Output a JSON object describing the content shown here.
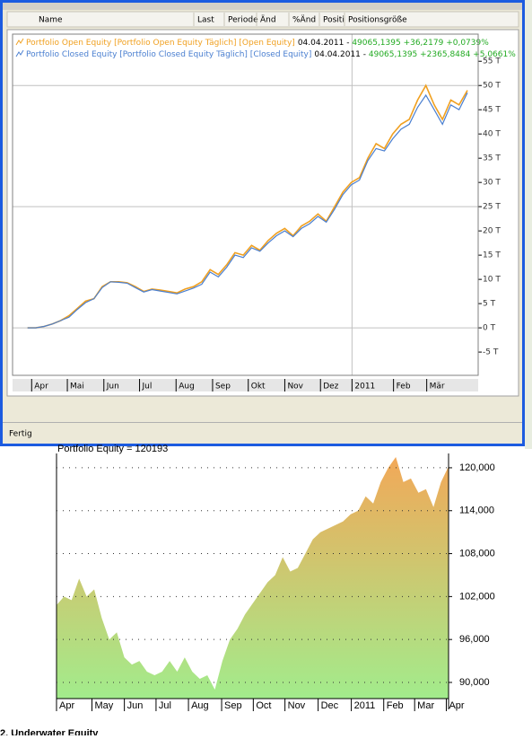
{
  "window": {
    "columns": [
      "Name",
      "Last",
      "Periode",
      "Änd",
      "%Änd",
      "Positi",
      "Positionsgröße"
    ],
    "status": "Fertig"
  },
  "chart_data": [
    {
      "type": "line",
      "series": [
        {
          "name": "Portfolio Open Equity [Portfolio Open Equity  Täglich] [Open Equity]",
          "date_label": "04.04.2011 - ",
          "stats": "49065,1395 +36,2179 +0,0739%",
          "color": "#f0a020",
          "values": [
            0,
            0,
            0.3,
            0.8,
            1.5,
            2.5,
            4,
            5.5,
            6,
            8.5,
            9.5,
            9.5,
            9.3,
            8.5,
            7.5,
            8,
            7.8,
            7.5,
            7.2,
            8,
            8.5,
            9.5,
            12,
            11,
            13,
            15.5,
            15,
            17,
            16,
            18,
            19.5,
            20.5,
            19,
            21,
            22,
            23.5,
            22,
            25,
            28,
            30,
            31,
            35,
            38,
            37,
            40,
            42,
            43,
            47,
            50,
            46,
            43,
            47,
            46,
            49
          ]
        },
        {
          "name": "Portfolio Closed Equity [Portfolio Closed Equity  Täglich] [Closed Equity]",
          "date_label": "04.04.2011 - ",
          "stats": "49065,1395 +2365,8484 +5,0661%",
          "color": "#4a7fd0",
          "values": [
            0,
            0,
            0.3,
            0.8,
            1.5,
            2.2,
            3.8,
            5.2,
            6,
            8.3,
            9.5,
            9.4,
            9.2,
            8.3,
            7.4,
            7.9,
            7.6,
            7.3,
            7,
            7.6,
            8.2,
            9,
            11.5,
            10.5,
            12.5,
            15,
            14.5,
            16.5,
            15.8,
            17.5,
            19,
            20,
            18.8,
            20.5,
            21.5,
            23,
            21.8,
            24.5,
            27.5,
            29.5,
            30.5,
            34.5,
            37,
            36.5,
            39,
            41,
            42,
            45.5,
            48,
            45,
            42,
            46,
            45,
            48.5
          ]
        }
      ],
      "xlim": [
        -1.8,
        54.3
      ],
      "xticks": [
        {
          "value": 0.5,
          "label": "Apr"
        },
        {
          "value": 4.8,
          "label": "Mai"
        },
        {
          "value": 9.2,
          "label": "Jun"
        },
        {
          "value": 13.5,
          "label": "Jul"
        },
        {
          "value": 17.9,
          "label": "Aug"
        },
        {
          "value": 22.3,
          "label": "Sep"
        },
        {
          "value": 26.6,
          "label": "Okt"
        },
        {
          "value": 31,
          "label": "Nov"
        },
        {
          "value": 35.3,
          "label": "Dez"
        },
        {
          "value": 39.1,
          "label": "2011"
        },
        {
          "value": 44.1,
          "label": "Feb"
        },
        {
          "value": 48.1,
          "label": "Mär"
        }
      ],
      "ylim": [
        -9.8,
        60.6
      ],
      "yticks": [
        {
          "value": -5,
          "label": "-5 T"
        },
        {
          "value": 0,
          "label": "0 T"
        },
        {
          "value": 5,
          "label": "5 T"
        },
        {
          "value": 10,
          "label": "10 T"
        },
        {
          "value": 15,
          "label": "15 T"
        },
        {
          "value": 20,
          "label": "20 T"
        },
        {
          "value": 25,
          "label": "25 T"
        },
        {
          "value": 30,
          "label": "30 T"
        },
        {
          "value": 35,
          "label": "35 T"
        },
        {
          "value": 40,
          "label": "40 T"
        },
        {
          "value": 45,
          "label": "45 T"
        },
        {
          "value": 50,
          "label": "50 T"
        },
        {
          "value": 55,
          "label": "55 T"
        }
      ],
      "grid": true
    },
    {
      "type": "area",
      "title": "Portfolio Equity = 120193",
      "colors": [
        "#f2a858",
        "#a2ec8c"
      ],
      "values": [
        100800,
        102000,
        101500,
        104500,
        102000,
        103000,
        99000,
        96000,
        97000,
        93500,
        92500,
        93000,
        91500,
        91000,
        91500,
        93000,
        91500,
        93500,
        91500,
        90500,
        91000,
        89000,
        93000,
        96000,
        97500,
        99500,
        101000,
        102500,
        104000,
        105000,
        107500,
        105500,
        106000,
        108000,
        110000,
        111000,
        111500,
        112000,
        112500,
        113500,
        114000,
        116000,
        115000,
        118000,
        120000,
        121500,
        118000,
        118500,
        116500,
        117000,
        114500,
        118000,
        120193
      ],
      "xlim": [
        0,
        52
      ],
      "xticks": [
        {
          "value": 0,
          "label": "Apr"
        },
        {
          "value": 4.7,
          "label": "May"
        },
        {
          "value": 9,
          "label": "Jun"
        },
        {
          "value": 13.2,
          "label": "Jul"
        },
        {
          "value": 17.5,
          "label": "Aug"
        },
        {
          "value": 21.9,
          "label": "Sep"
        },
        {
          "value": 26.1,
          "label": "Oct"
        },
        {
          "value": 30.3,
          "label": "Nov"
        },
        {
          "value": 34.7,
          "label": "Dec"
        },
        {
          "value": 39.1,
          "label": "2011"
        },
        {
          "value": 43.4,
          "label": "Feb"
        },
        {
          "value": 47.5,
          "label": "Mar"
        },
        {
          "value": 51.7,
          "label": "Apr"
        }
      ],
      "ylim": [
        87740,
        122000
      ],
      "yticks": [
        {
          "value": 90000,
          "label": "90,000"
        },
        {
          "value": 96000,
          "label": "96,000"
        },
        {
          "value": 102000,
          "label": "102,000"
        },
        {
          "value": 108000,
          "label": "108,000"
        },
        {
          "value": 114000,
          "label": "114,000"
        },
        {
          "value": 120000,
          "label": "120,000"
        }
      ],
      "grid": "dotted"
    }
  ],
  "footer": {
    "heading": "2. Underwater Equity"
  }
}
